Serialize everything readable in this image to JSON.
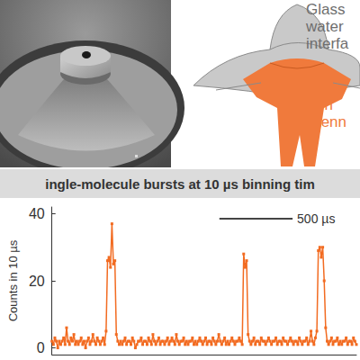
{
  "chart_data": {
    "type": "line",
    "title": "ingle-molecule bursts at 10 µs binning tim",
    "y_label": "Counts in 10 µs",
    "color": "#f26b21",
    "marker": "square",
    "line_style": "solid",
    "x": [
      0,
      10,
      20,
      30,
      40,
      50,
      60,
      70,
      80,
      90,
      100,
      110,
      120,
      130,
      140,
      150,
      160,
      170,
      180,
      190,
      200,
      210,
      220,
      230,
      240,
      250,
      260,
      270,
      280,
      290,
      300,
      310,
      320,
      330,
      340,
      350,
      360,
      370,
      380,
      390,
      400,
      410,
      420,
      430,
      440,
      450,
      460,
      470,
      480,
      490,
      500,
      510,
      520,
      530,
      540,
      550,
      560,
      570,
      580,
      590,
      600,
      610,
      620,
      630,
      640,
      650,
      660,
      670,
      680,
      690,
      700,
      710,
      720,
      730,
      740,
      750,
      760,
      770,
      780,
      790,
      800,
      810,
      820,
      830,
      840,
      850,
      860,
      870,
      880,
      890,
      900,
      910,
      920,
      930,
      940,
      950,
      960,
      970,
      980,
      990,
      1000,
      1010,
      1020,
      1030,
      1040,
      1050,
      1060,
      1070,
      1080,
      1090,
      1100,
      1110,
      1120,
      1130,
      1140,
      1150,
      1160,
      1170,
      1180,
      1190,
      1200,
      1210,
      1220,
      1230,
      1240,
      1250,
      1260,
      1270,
      1280,
      1290,
      1300,
      1310,
      1320,
      1330,
      1340,
      1350,
      1360,
      1370,
      1380,
      1390,
      1400,
      1410,
      1420,
      1430,
      1440,
      1450,
      1460,
      1470,
      1480,
      1490,
      1500,
      1510,
      1520,
      1530,
      1540,
      1550,
      1560,
      1570,
      1580,
      1590,
      1600,
      1610,
      1620,
      1630,
      1640,
      1650,
      1660,
      1670,
      1680,
      1690,
      1700,
      1710,
      1720,
      1730,
      1740,
      1750,
      1760,
      1770,
      1780,
      1790,
      1800,
      1810,
      1820,
      1830,
      1840,
      1850,
      1860,
      1870,
      1880,
      1890,
      1900,
      1910,
      1920,
      1930,
      1940,
      1950,
      1960,
      1970,
      1980,
      1990,
      2000,
      2010,
      2020,
      2030,
      2040,
      2050,
      2060,
      2070,
      2080
    ],
    "values": [
      2,
      1,
      3,
      2,
      0,
      2,
      1,
      2,
      3,
      1,
      6,
      2,
      1,
      3,
      2,
      4,
      1,
      2,
      1,
      2,
      3,
      1,
      2,
      0,
      2,
      3,
      1,
      2,
      4,
      2,
      1,
      3,
      2,
      1,
      2,
      3,
      1,
      5,
      26,
      27,
      24,
      37,
      25,
      26,
      4,
      2,
      1,
      2,
      1,
      2,
      3,
      1,
      2,
      2,
      1,
      3,
      2,
      0,
      1,
      2,
      2,
      3,
      1,
      2,
      2,
      1,
      3,
      2,
      1,
      4,
      2,
      1,
      2,
      3,
      1,
      2,
      2,
      1,
      2,
      3,
      1,
      2,
      3,
      2,
      1,
      4,
      2,
      1,
      2,
      2,
      3,
      1,
      2,
      1,
      2,
      2,
      3,
      1,
      2,
      1,
      2,
      3,
      2,
      1,
      2,
      3,
      1,
      2,
      2,
      1,
      3,
      2,
      1,
      2,
      4,
      2,
      1,
      2,
      3,
      1,
      2,
      1,
      2,
      3,
      2,
      1,
      2,
      2,
      3,
      2,
      1,
      28,
      24,
      26,
      4,
      2,
      1,
      2,
      3,
      1,
      2,
      2,
      1,
      3,
      2,
      2,
      1,
      2,
      3,
      2,
      1,
      2,
      2,
      3,
      1,
      2,
      2,
      1,
      3,
      2,
      2,
      1,
      2,
      3,
      2,
      1,
      2,
      2,
      1,
      3,
      2,
      1,
      2,
      2,
      3,
      1,
      2,
      5,
      2,
      1,
      3,
      5,
      29,
      30,
      27,
      30,
      20,
      6,
      2,
      1,
      2,
      3,
      1,
      2,
      2,
      3,
      1,
      2,
      1,
      2,
      2,
      3,
      1,
      2,
      2,
      1,
      3,
      2,
      1
    ],
    "xlim": [
      0,
      2080
    ],
    "ylim": [
      -2,
      42
    ],
    "yticks": [
      0,
      20,
      40
    ],
    "grid": false,
    "tick_labels": "y",
    "scale_bar": {
      "label": "500 µs",
      "length": 500
    }
  },
  "diagram": {
    "labels": [
      {
        "lines": [
          "Glass",
          "water",
          "interfa"
        ],
        "color": "#6e6e6e"
      },
      {
        "lines": [
          "Horn",
          "antenn"
        ],
        "color": "#f07a3c"
      }
    ]
  }
}
